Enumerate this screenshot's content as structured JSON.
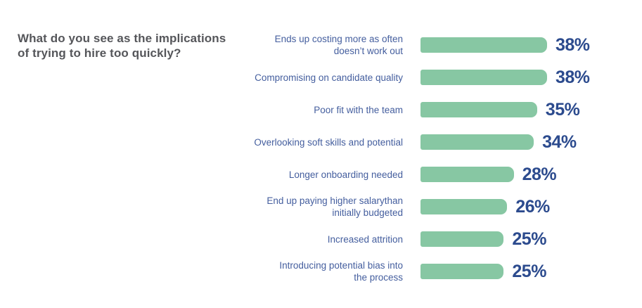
{
  "chart_data": {
    "type": "bar",
    "orientation": "horizontal",
    "title": "What do you see as the implications of trying to hire too quickly?",
    "categories": [
      "Ends up costing more as often\ndoesn’t work out",
      "Compromising on candidate quality",
      "Poor fit with the team",
      "Overlooking soft skills and potential",
      "Longer onboarding needed",
      "End up paying higher salarythan\ninitially budgeted",
      "Increased attrition",
      "Introducing potential bias into\nthe process"
    ],
    "values": [
      38,
      38,
      35,
      34,
      28,
      26,
      25,
      25
    ],
    "value_labels": [
      "38%",
      "38%",
      "35%",
      "34%",
      "28%",
      "26%",
      "25%",
      "25%"
    ],
    "unit": "%",
    "xlim": [
      0,
      38
    ],
    "grid": false,
    "legend": "none",
    "bar_color": "#87C7A3",
    "value_label_color": "#2C4B8E",
    "category_label_color": "#445E9E",
    "title_color": "#55565A",
    "background": "#FFFFFF"
  }
}
